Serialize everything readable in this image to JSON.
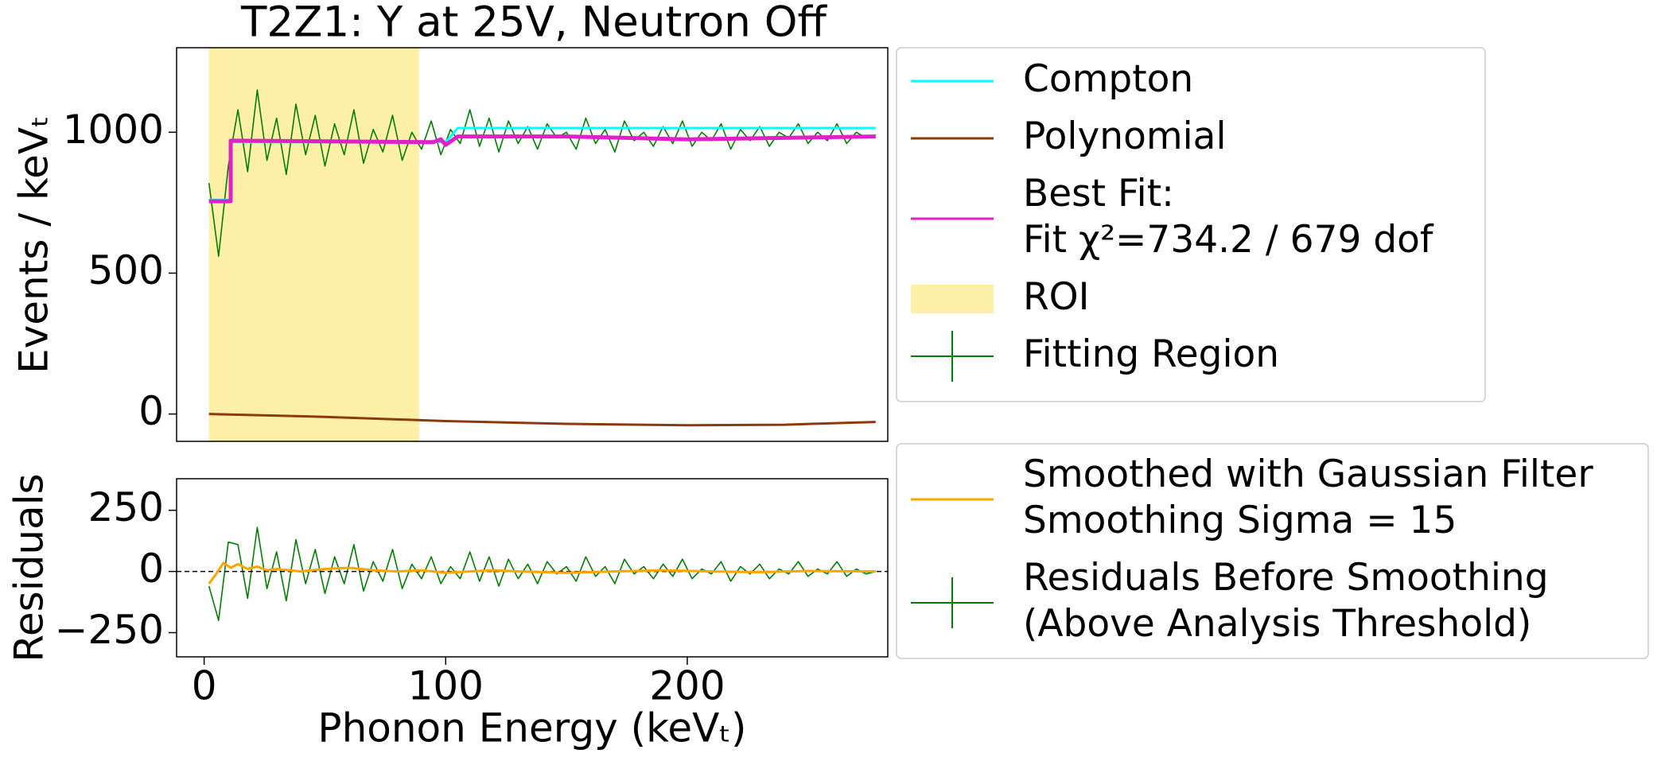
{
  "chart_data": [
    {
      "type": "line",
      "title": "T2Z1: Y at 25V, Neutron Off",
      "y_label": "Events / keVₜ",
      "xlim": [
        -11.4,
        283
      ],
      "ylim": [
        -97,
        1300
      ],
      "yticks": [
        0,
        500,
        1000
      ],
      "grid": false,
      "legend": "outside right",
      "series": [
        {
          "name": "Compton",
          "kind": "line",
          "color": "#00ffff",
          "x": [
            2,
            11,
            11,
            100,
            105,
            278
          ],
          "values": [
            760,
            760,
            965,
            965,
            1015,
            1015
          ]
        },
        {
          "name": "Polynomial",
          "kind": "line",
          "color": "#8b3a0f",
          "x": [
            2,
            50,
            100,
            150,
            200,
            240,
            278
          ],
          "values": [
            0,
            -10,
            -25,
            -35,
            -40,
            -38,
            -28
          ]
        },
        {
          "name": "Best Fit:\nFit χ²=734.2 / 679 dof",
          "kind": "line",
          "color": "#e020c8",
          "x": [
            2,
            11,
            11,
            95,
            98,
            100,
            105,
            150,
            200,
            278
          ],
          "values": [
            755,
            755,
            970,
            965,
            975,
            955,
            985,
            985,
            975,
            985
          ]
        },
        {
          "name": "ROI",
          "kind": "span",
          "color": "#fff0a8",
          "range": [
            2,
            89
          ]
        },
        {
          "name": "Fitting Region",
          "kind": "errorbar",
          "color": "#008000",
          "x": [
            2,
            6,
            10,
            14,
            18,
            22,
            26,
            30,
            34,
            38,
            42,
            46,
            50,
            54,
            58,
            62,
            66,
            70,
            74,
            78,
            82,
            86,
            90,
            94,
            98,
            102,
            106,
            110,
            114,
            118,
            122,
            126,
            130,
            134,
            138,
            142,
            146,
            150,
            154,
            158,
            162,
            166,
            170,
            174,
            178,
            182,
            186,
            190,
            194,
            198,
            202,
            206,
            210,
            214,
            218,
            222,
            226,
            230,
            234,
            238,
            242,
            246,
            250,
            254,
            258,
            262,
            266,
            270,
            274,
            278
          ],
          "values": [
            820,
            560,
            880,
            1080,
            860,
            1150,
            900,
            1050,
            850,
            1100,
            920,
            1060,
            880,
            1030,
            920,
            1080,
            890,
            1010,
            930,
            1060,
            900,
            1000,
            940,
            1040,
            920,
            1010,
            960,
            1080,
            950,
            1050,
            930,
            1040,
            960,
            1020,
            940,
            1030,
            980,
            1000,
            940,
            1050,
            960,
            1010,
            930,
            1040,
            970,
            1000,
            950,
            1020,
            960,
            1040,
            950,
            1000,
            970,
            1030,
            940,
            1010,
            970,
            1020,
            950,
            1000,
            980,
            1030,
            960,
            1000,
            970,
            1030,
            960,
            1000,
            980,
            990
          ]
        }
      ]
    },
    {
      "type": "line",
      "y_label": "Residuals",
      "x_label": "Phonon Energy (keVₜ)",
      "xlim": [
        -11.4,
        283
      ],
      "ylim": [
        -349,
        379
      ],
      "xticks": [
        0,
        100,
        200
      ],
      "yticks": [
        {
          "value": -250,
          "label": "−250"
        },
        0,
        250
      ],
      "zero_line": true,
      "grid": false,
      "legend": "outside right",
      "series": [
        {
          "name": "Smoothed with Gaussian Filter\nSmoothing Sigma = 15",
          "kind": "line",
          "color": "#ffa500",
          "x": [
            2,
            5,
            8,
            11,
            14,
            18,
            22,
            26,
            30,
            40,
            50,
            60,
            70,
            80,
            90,
            100,
            110,
            120,
            130,
            150,
            170,
            190,
            210,
            230,
            250,
            278
          ],
          "values": [
            -50,
            -10,
            35,
            15,
            30,
            10,
            20,
            5,
            10,
            0,
            10,
            15,
            5,
            0,
            5,
            -5,
            0,
            5,
            0,
            -5,
            0,
            5,
            0,
            -3,
            2,
            0
          ]
        },
        {
          "name": "Residuals Before Smoothing\n(Above Analysis Threshold)",
          "kind": "errorbar",
          "color": "#008000",
          "x": [
            2,
            6,
            10,
            14,
            18,
            22,
            26,
            30,
            34,
            38,
            42,
            46,
            50,
            54,
            58,
            62,
            66,
            70,
            74,
            78,
            82,
            86,
            90,
            94,
            98,
            102,
            106,
            110,
            114,
            118,
            122,
            126,
            130,
            134,
            138,
            142,
            146,
            150,
            154,
            158,
            162,
            166,
            170,
            174,
            178,
            182,
            186,
            190,
            194,
            198,
            202,
            206,
            210,
            214,
            218,
            222,
            226,
            230,
            234,
            238,
            242,
            246,
            250,
            254,
            258,
            262,
            266,
            270,
            274,
            278
          ],
          "values": [
            -60,
            -200,
            120,
            110,
            -110,
            180,
            -70,
            80,
            -120,
            130,
            -50,
            90,
            -90,
            60,
            -50,
            110,
            -80,
            40,
            -40,
            90,
            -70,
            30,
            -30,
            60,
            -50,
            20,
            -30,
            80,
            -40,
            60,
            -60,
            50,
            -30,
            30,
            -50,
            40,
            -10,
            20,
            -40,
            60,
            -20,
            20,
            -50,
            50,
            -10,
            20,
            -30,
            30,
            -20,
            50,
            -30,
            10,
            -10,
            40,
            -40,
            20,
            -10,
            30,
            -30,
            10,
            -10,
            40,
            -20,
            10,
            -10,
            40,
            -20,
            10,
            -10,
            0
          ]
        }
      ]
    }
  ]
}
